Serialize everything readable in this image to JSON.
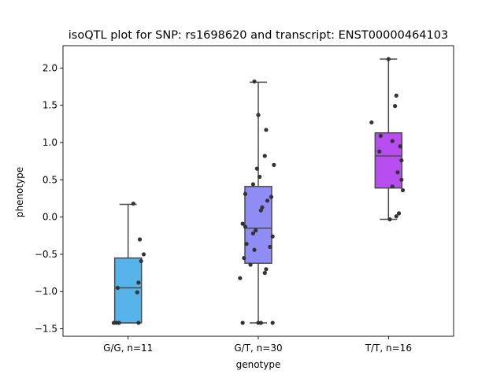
{
  "chart_data": {
    "type": "box",
    "title": "isoQTL plot for SNP: rs1698620 and transcript: ENST00000464103",
    "xlabel": "genotype",
    "ylabel": "phenotype",
    "ylim": [
      -1.6,
      2.3
    ],
    "yticks": [
      -1.5,
      -1.0,
      -0.5,
      0.0,
      0.5,
      1.0,
      1.5,
      2.0
    ],
    "ytick_labels": [
      "−1.5",
      "−1.0",
      "−0.5",
      "0.0",
      "0.5",
      "1.0",
      "1.5",
      "2.0"
    ],
    "grid": false,
    "categories": [
      "G/G, n=11",
      "G/T, n=30",
      "T/T, n=16"
    ],
    "colors": [
      "#56b4ea",
      "#8f8cf5",
      "#b84ef0"
    ],
    "boxes": [
      {
        "whisker_low": -1.42,
        "q1": -1.42,
        "median": -0.95,
        "q3": -0.55,
        "whisker_high": 0.17
      },
      {
        "whisker_low": -1.42,
        "q1": -0.62,
        "median": -0.15,
        "q3": 0.41,
        "whisker_high": 1.81
      },
      {
        "whisker_low": -0.03,
        "q1": 0.39,
        "median": 0.82,
        "q3": 1.13,
        "whisker_high": 2.12
      }
    ],
    "points": [
      [
        {
          "dx": -0.11,
          "y": -1.42
        },
        {
          "dx": -0.09,
          "y": -1.42
        },
        {
          "dx": -0.07,
          "y": -1.42
        },
        {
          "dx": 0.08,
          "y": -1.42
        },
        {
          "dx": -0.08,
          "y": -0.95
        },
        {
          "dx": 0.04,
          "y": 0.18
        },
        {
          "dx": 0.09,
          "y": -0.3
        },
        {
          "dx": 0.12,
          "y": -0.5
        },
        {
          "dx": 0.1,
          "y": -0.59
        },
        {
          "dx": 0.08,
          "y": -0.88
        },
        {
          "dx": 0.07,
          "y": -1.01
        }
      ],
      [
        {
          "dx": -0.03,
          "y": 1.82
        },
        {
          "dx": 0.0,
          "y": 1.37
        },
        {
          "dx": 0.06,
          "y": 1.17
        },
        {
          "dx": 0.05,
          "y": 0.82
        },
        {
          "dx": 0.12,
          "y": 0.7
        },
        {
          "dx": -0.01,
          "y": 0.65
        },
        {
          "dx": 0.01,
          "y": 0.54
        },
        {
          "dx": -0.04,
          "y": 0.44
        },
        {
          "dx": -0.1,
          "y": 0.31
        },
        {
          "dx": 0.1,
          "y": 0.27
        },
        {
          "dx": 0.07,
          "y": 0.22
        },
        {
          "dx": 0.03,
          "y": 0.13
        },
        {
          "dx": 0.02,
          "y": 0.09
        },
        {
          "dx": -0.12,
          "y": -0.09
        },
        {
          "dx": -0.1,
          "y": -0.13
        },
        {
          "dx": -0.02,
          "y": -0.18
        },
        {
          "dx": -0.04,
          "y": -0.22
        },
        {
          "dx": 0.11,
          "y": -0.26
        },
        {
          "dx": -0.09,
          "y": -0.36
        },
        {
          "dx": 0.09,
          "y": -0.4
        },
        {
          "dx": -0.03,
          "y": -0.44
        },
        {
          "dx": -0.11,
          "y": -0.55
        },
        {
          "dx": -0.06,
          "y": -0.64
        },
        {
          "dx": 0.06,
          "y": -0.7
        },
        {
          "dx": 0.05,
          "y": -0.75
        },
        {
          "dx": -0.14,
          "y": -0.82
        },
        {
          "dx": -0.12,
          "y": -1.42
        },
        {
          "dx": 0.0,
          "y": -1.42
        },
        {
          "dx": 0.02,
          "y": -1.42
        },
        {
          "dx": 0.11,
          "y": -1.42
        }
      ],
      [
        {
          "dx": 0.0,
          "y": 2.12
        },
        {
          "dx": 0.06,
          "y": 1.63
        },
        {
          "dx": 0.05,
          "y": 1.49
        },
        {
          "dx": -0.13,
          "y": 1.27
        },
        {
          "dx": -0.06,
          "y": 1.09
        },
        {
          "dx": 0.03,
          "y": 1.02
        },
        {
          "dx": 0.09,
          "y": 0.95
        },
        {
          "dx": -0.07,
          "y": 0.88
        },
        {
          "dx": 0.1,
          "y": 0.76
        },
        {
          "dx": 0.07,
          "y": 0.6
        },
        {
          "dx": 0.1,
          "y": 0.5
        },
        {
          "dx": 0.03,
          "y": 0.41
        },
        {
          "dx": 0.11,
          "y": 0.36
        },
        {
          "dx": 0.08,
          "y": 0.05
        },
        {
          "dx": 0.06,
          "y": 0.01
        },
        {
          "dx": 0.01,
          "y": -0.03
        }
      ]
    ]
  }
}
